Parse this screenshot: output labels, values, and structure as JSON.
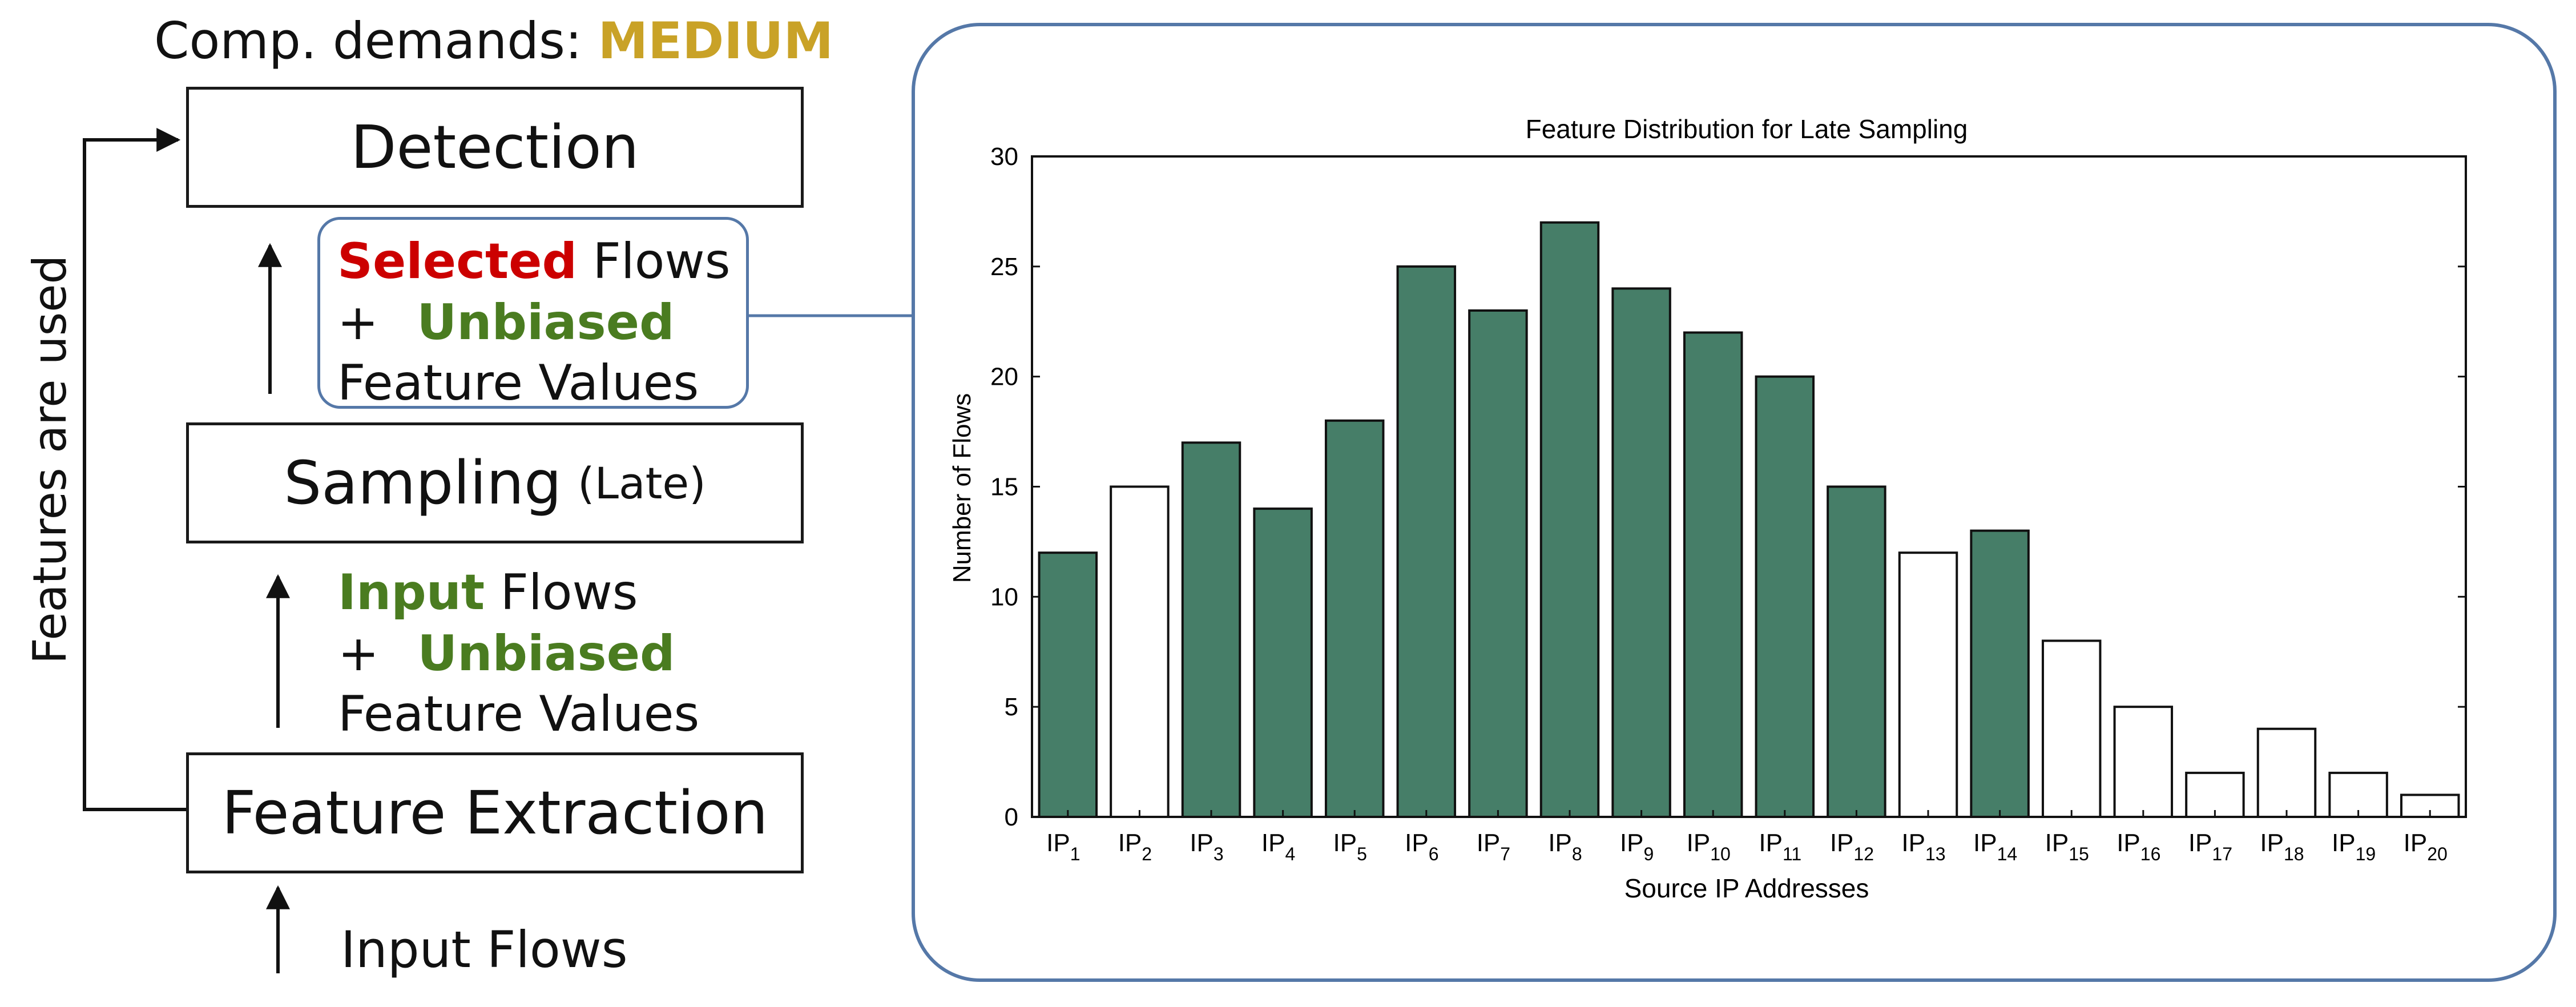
{
  "pipeline": {
    "demands_label": "Comp. demands:",
    "demands_value": "MEDIUM",
    "side_label": "Features are used",
    "detection_label": "Detection",
    "sampling_label": "Sampling",
    "sampling_mode": "(Late)",
    "feature_extraction_label": "Feature Extraction",
    "input_label": "Input Flows",
    "upper_note": {
      "highlight": "Selected",
      "word": "Flows",
      "plus": "+",
      "emphasis": "Unbiased",
      "tail": "Feature Values"
    },
    "lower_note": {
      "highlight": "Input",
      "word": "Flows",
      "plus": "+",
      "emphasis": "Unbiased",
      "tail": "Feature Values"
    }
  },
  "colors": {
    "selected_bar": "#467e68",
    "unselected_bar": "#ffffff",
    "panel_border": "#5578a8",
    "red": "#cc0000",
    "green": "#4a7c20",
    "gold": "#c9a227"
  },
  "chart_data": {
    "type": "bar",
    "title": "Feature Distribution for Late Sampling",
    "xlabel": "Source IP Addresses",
    "ylabel": "Number of Flows",
    "ylim": [
      0,
      30
    ],
    "yticks": [
      0,
      5,
      10,
      15,
      20,
      25,
      30
    ],
    "grid": false,
    "tick_prefix": "IP",
    "categories": [
      "1",
      "2",
      "3",
      "4",
      "5",
      "6",
      "7",
      "8",
      "9",
      "10",
      "11",
      "12",
      "13",
      "14",
      "15",
      "16",
      "17",
      "18",
      "19",
      "20"
    ],
    "values": [
      12,
      15,
      17,
      14,
      18,
      25,
      23,
      27,
      24,
      22,
      20,
      15,
      12,
      13,
      8,
      5,
      2,
      4,
      2,
      1
    ],
    "selected": [
      true,
      false,
      true,
      true,
      true,
      true,
      true,
      true,
      true,
      true,
      true,
      true,
      false,
      true,
      false,
      false,
      false,
      false,
      false,
      false
    ]
  }
}
